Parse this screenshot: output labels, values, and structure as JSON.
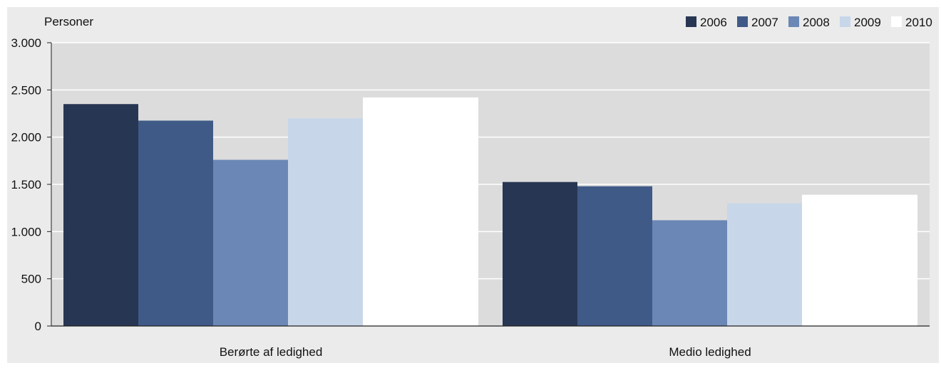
{
  "chart_data": {
    "type": "bar",
    "ylabel": "Personer",
    "categories": [
      "Berørte af ledighed",
      "Medio ledighed"
    ],
    "series": [
      {
        "name": "2006",
        "color": "#273653",
        "values": [
          2350,
          1525
        ]
      },
      {
        "name": "2007",
        "color": "#405a88",
        "values": [
          2175,
          1480
        ]
      },
      {
        "name": "2008",
        "color": "#6b87b5",
        "values": [
          1760,
          1120
        ]
      },
      {
        "name": "2009",
        "color": "#c8d6e9",
        "values": [
          2200,
          1300
        ]
      },
      {
        "name": "2010",
        "color": "#ffffff",
        "values": [
          2420,
          1390
        ]
      }
    ],
    "y_ticks": [
      {
        "value": 0,
        "label": "0"
      },
      {
        "value": 500,
        "label": "500"
      },
      {
        "value": 1000,
        "label": "1.000"
      },
      {
        "value": 1500,
        "label": "1.500"
      },
      {
        "value": 2000,
        "label": "2.000"
      },
      {
        "value": 2500,
        "label": "2.500"
      },
      {
        "value": 3000,
        "label": "3.000"
      }
    ],
    "ylim": [
      0,
      3000
    ],
    "grid": true,
    "legend_position": "top-right",
    "colors": {
      "outer_background": "#ebebeb",
      "plot_background": "#dcdcdc",
      "grid": "#ffffff",
      "axis": "#222222"
    }
  }
}
